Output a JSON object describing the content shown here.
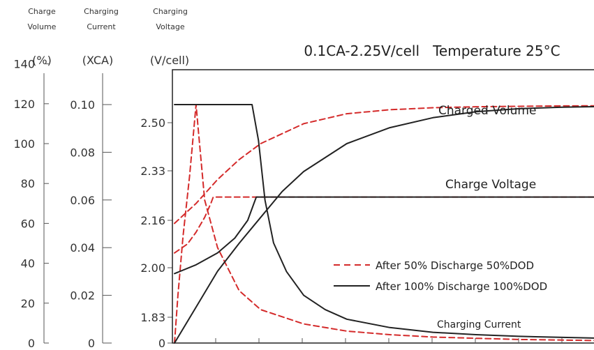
{
  "chart_data": {
    "type": "line",
    "title": "0.1CA-2.25V/cell   Temperature 25°C",
    "axes_headings": [
      {
        "line1": "Charge",
        "line2": "Volume"
      },
      {
        "line1": "Charging",
        "line2": "Current"
      },
      {
        "line1": "Charging",
        "line2": "Voltage"
      }
    ],
    "units": {
      "volume": "(%)",
      "current": "(XCA)",
      "voltage": "(V/cell)"
    },
    "volume_axis": {
      "ticks": [
        "0",
        "20",
        "40",
        "60",
        "80",
        "100",
        "120",
        "140"
      ],
      "values": [
        0,
        20,
        40,
        60,
        80,
        100,
        120,
        140
      ]
    },
    "current_axis": {
      "ticks": [
        "0",
        "0.02",
        "0.04",
        "0.06",
        "0.08",
        "0.10"
      ],
      "values": [
        0,
        0.02,
        0.04,
        0.06,
        0.08,
        0.1
      ]
    },
    "voltage_axis": {
      "ticks": [
        "0",
        "1.83",
        "2.00",
        "2.16",
        "2.33",
        "2.50"
      ],
      "values": [
        0,
        1.83,
        2.0,
        2.16,
        2.33,
        2.5
      ]
    },
    "x_range": [
      0,
      10
    ],
    "annotations": {
      "charged_volume": "Charged Volume",
      "charge_voltage": "Charge Voltage",
      "charging_current": "Charging Current"
    },
    "legend": {
      "placement": "lower-right",
      "items": [
        {
          "label": "After 50% Discharge 50%DOD",
          "style": "dashed",
          "color": "#d42a2a"
        },
        {
          "label": "After 100% Discharge 100%DOD",
          "style": "solid",
          "color": "#222222"
        }
      ]
    },
    "series": [
      {
        "group": "50%DOD",
        "kind": "volume",
        "color": "#d42a2a",
        "style": "dashed",
        "x": [
          0,
          0.5,
          1,
          1.5,
          2,
          3,
          4,
          5,
          6,
          7,
          8,
          9,
          10
        ],
        "y": [
          60,
          70,
          82,
          92,
          100,
          110,
          115,
          117,
          118,
          118.5,
          118.7,
          118.9,
          119
        ]
      },
      {
        "group": "50%DOD",
        "kind": "voltage",
        "color": "#d42a2a",
        "style": "dashed",
        "x": [
          0,
          0.3,
          0.5,
          0.7,
          0.85,
          0.9,
          1.0,
          2,
          4,
          6,
          8,
          10
        ],
        "y": [
          2.05,
          2.08,
          2.12,
          2.17,
          2.22,
          2.24,
          2.24,
          2.24,
          2.24,
          2.24,
          2.24,
          2.24
        ]
      },
      {
        "group": "50%DOD",
        "kind": "current",
        "color": "#d42a2a",
        "style": "dashed",
        "x": [
          0,
          0.08,
          0.2,
          0.35,
          0.45,
          0.5,
          0.55,
          0.7,
          1.0,
          1.5,
          2,
          3,
          4,
          5,
          6,
          7,
          8,
          10
        ],
        "y": [
          0,
          0.02,
          0.045,
          0.07,
          0.09,
          0.1,
          0.09,
          0.06,
          0.04,
          0.022,
          0.014,
          0.008,
          0.005,
          0.0035,
          0.0025,
          0.002,
          0.0015,
          0.001
        ]
      },
      {
        "group": "100%DOD",
        "kind": "volume",
        "color": "#222222",
        "style": "solid",
        "x": [
          0,
          0.5,
          1,
          1.5,
          2,
          2.5,
          3,
          4,
          5,
          6,
          7,
          8,
          9,
          10
        ],
        "y": [
          0,
          18,
          36,
          50,
          63,
          76,
          86,
          100,
          108,
          113,
          116,
          117.5,
          118.3,
          118.6
        ]
      },
      {
        "group": "100%DOD",
        "kind": "voltage",
        "color": "#222222",
        "style": "solid",
        "x": [
          0,
          0.5,
          1.0,
          1.4,
          1.7,
          1.85,
          1.9,
          2.1,
          4,
          6,
          8,
          10
        ],
        "y": [
          1.98,
          2.01,
          2.05,
          2.1,
          2.16,
          2.22,
          2.24,
          2.24,
          2.24,
          2.24,
          2.24,
          2.24
        ]
      },
      {
        "group": "100%DOD",
        "kind": "current",
        "color": "#222222",
        "style": "solid",
        "x": [
          0,
          1.8,
          1.95,
          2.1,
          2.3,
          2.6,
          3,
          3.5,
          4,
          5,
          6,
          7,
          8,
          10
        ],
        "y": [
          0.1,
          0.1,
          0.085,
          0.06,
          0.042,
          0.03,
          0.02,
          0.014,
          0.01,
          0.0065,
          0.0045,
          0.0035,
          0.0028,
          0.002
        ]
      }
    ]
  }
}
